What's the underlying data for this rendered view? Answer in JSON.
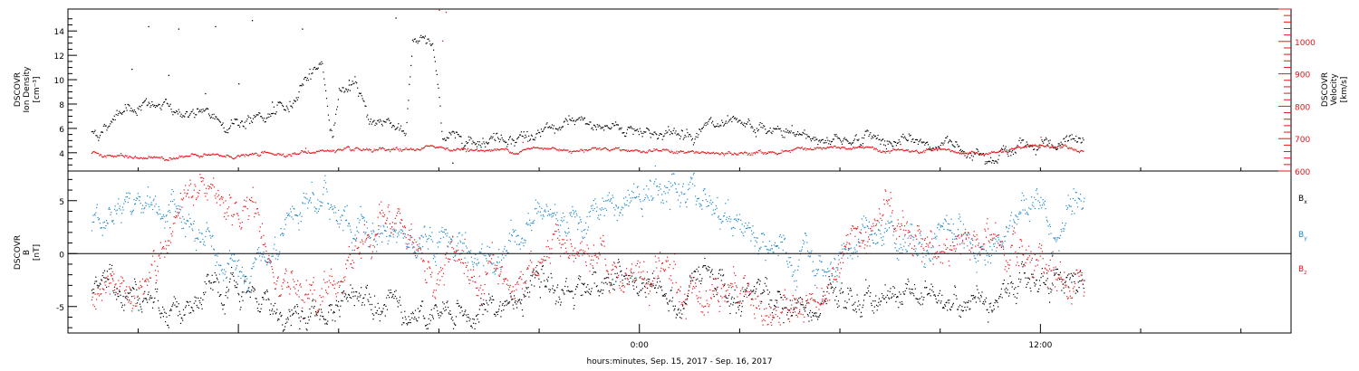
{
  "chart_data": [
    {
      "type": "scatter",
      "title": "",
      "ylabel_left": [
        "DSCOVR",
        "Ion Density",
        "[cm⁻³]"
      ],
      "ylabel_right": [
        "DSCOVR",
        "Velocity",
        "[km/s]"
      ],
      "ylim_left": [
        2.5,
        15.8
      ],
      "ylim_right": [
        600,
        1100
      ],
      "yticks_left": [
        4,
        6,
        8,
        10,
        12,
        14
      ],
      "yticks_right": [
        600,
        700,
        800,
        900,
        1000
      ],
      "grid": false,
      "series": [
        {
          "key": "density",
          "axis": "left",
          "color": "#000000",
          "anchors": [
            [
              -16.4,
              5.7
            ],
            [
              -16,
              6
            ],
            [
              -15.5,
              8
            ],
            [
              -14.5,
              7.8
            ],
            [
              -13.5,
              7.3
            ],
            [
              -12.5,
              6.6
            ],
            [
              -11.5,
              6.7
            ],
            [
              -10.5,
              7.5
            ],
            [
              -10,
              10.5
            ],
            [
              -9.5,
              11.5
            ],
            [
              -9.2,
              5
            ],
            [
              -9,
              9.3
            ],
            [
              -8.5,
              9.2
            ],
            [
              -8,
              6.5
            ],
            [
              -7.5,
              6.7
            ],
            [
              -7,
              6
            ],
            [
              -6.8,
              13
            ],
            [
              -6.2,
              13
            ],
            [
              -5.9,
              5.5
            ],
            [
              -5,
              5.3
            ],
            [
              -4,
              5.5
            ],
            [
              -3,
              5.4
            ],
            [
              -2,
              6.3
            ],
            [
              -1,
              6.2
            ],
            [
              0,
              6
            ],
            [
              1,
              5.5
            ],
            [
              2,
              6.2
            ],
            [
              3,
              5.8
            ],
            [
              4,
              5.7
            ],
            [
              5,
              5.3
            ],
            [
              6,
              5.2
            ],
            [
              7,
              5.3
            ],
            [
              8,
              4.8
            ],
            [
              9,
              4.7
            ],
            [
              10,
              4.4
            ],
            [
              11,
              4.2
            ],
            [
              12,
              5
            ],
            [
              13.3,
              4.7
            ]
          ],
          "scatter": [
            [
              -14.7,
              14.4
            ],
            [
              -13.8,
              14.2
            ],
            [
              -12.7,
              14.4
            ],
            [
              -11.6,
              14.9
            ],
            [
              -10.1,
              14.2
            ],
            [
              -7.3,
              15.1
            ],
            [
              -14.1,
              10.4
            ],
            [
              -12,
              9.7
            ],
            [
              -11,
              8.2
            ],
            [
              -15.2,
              10.9
            ],
            [
              -5.6,
              3.2
            ],
            [
              -8.7,
              10
            ],
            [
              -13,
              8.9
            ]
          ]
        },
        {
          "key": "velocity",
          "axis": "right",
          "color": "#e8141a",
          "anchors": [
            [
              -16.4,
              658
            ],
            [
              -16,
              650
            ],
            [
              -15,
              640
            ],
            [
              -14,
              646
            ],
            [
              -13,
              647
            ],
            [
              -12,
              648
            ],
            [
              -11,
              655
            ],
            [
              -10,
              657
            ],
            [
              -9.5,
              665
            ],
            [
              -9,
              663
            ],
            [
              -8,
              660
            ],
            [
              -7,
              665
            ],
            [
              -6.5,
              672
            ],
            [
              -6,
              675
            ],
            [
              -5,
              666
            ],
            [
              -4,
              665
            ],
            [
              -3,
              670
            ],
            [
              -2,
              668
            ],
            [
              -1,
              674
            ],
            [
              0,
              665
            ],
            [
              1,
              662
            ],
            [
              2,
              655
            ],
            [
              3,
              652
            ],
            [
              4,
              660
            ],
            [
              5,
              674
            ],
            [
              6,
              670
            ],
            [
              7,
              668
            ],
            [
              8,
              662
            ],
            [
              9,
              658
            ],
            [
              10,
              655
            ],
            [
              11,
              660
            ],
            [
              11.5,
              670
            ],
            [
              12,
              682
            ],
            [
              12.5,
              676
            ],
            [
              13,
              668
            ],
            [
              13.3,
              660
            ]
          ],
          "scatter": [
            [
              -6,
              1098
            ],
            [
              -5.8,
              1092
            ],
            [
              -5.9,
              1003
            ],
            [
              -10,
              672
            ],
            [
              -3.5,
              690
            ],
            [
              12,
              706
            ]
          ]
        }
      ]
    },
    {
      "type": "scatter",
      "title": "",
      "ylabel": [
        "DSCOVR",
        "B",
        "[nT]"
      ],
      "ylim": [
        -7.5,
        7.8
      ],
      "yticks": [
        -5,
        0,
        5
      ],
      "hline": 0,
      "grid": false,
      "xlabel": "hours:minutes, Sep. 15, 2017 - Sep. 16, 2017",
      "xticks": [
        {
          "value": 0,
          "label": "0:00"
        },
        {
          "value": 12,
          "label": "12:00"
        }
      ],
      "xlim": [
        -17.1,
        19.5
      ],
      "legend": [
        {
          "label": "B",
          "sub": "x",
          "color": "#000000"
        },
        {
          "label": "B",
          "sub": "y",
          "color": "#1e88c8"
        },
        {
          "label": "B",
          "sub": "z",
          "color": "#e8141a"
        }
      ],
      "series": [
        {
          "key": "bx",
          "color": "#000000",
          "anchors": [
            [
              -16.4,
              -2.5
            ],
            [
              -15.5,
              -3
            ],
            [
              -14.5,
              -4
            ],
            [
              -13.5,
              -5
            ],
            [
              -12.5,
              -4
            ],
            [
              -11.5,
              -4.5
            ],
            [
              -10.5,
              -5.5
            ],
            [
              -9.5,
              -6
            ],
            [
              -8.5,
              -3.5
            ],
            [
              -7.5,
              -3.2
            ],
            [
              -6.5,
              -6
            ],
            [
              -5.5,
              -6
            ],
            [
              -4.5,
              -5.5
            ],
            [
              -3.5,
              -4
            ],
            [
              -2.5,
              -3.5
            ],
            [
              -1.5,
              -2.5
            ],
            [
              -0.5,
              -3
            ],
            [
              0.5,
              -3
            ],
            [
              1.2,
              -6
            ],
            [
              2,
              -1
            ],
            [
              3,
              -3.5
            ],
            [
              4,
              -4.5
            ],
            [
              5,
              -5.5
            ],
            [
              6,
              -5
            ],
            [
              7,
              -4
            ],
            [
              8,
              -3.5
            ],
            [
              9,
              -4
            ],
            [
              10,
              -4.5
            ],
            [
              11,
              -3
            ],
            [
              12,
              -2
            ],
            [
              13.3,
              -2.5
            ]
          ]
        },
        {
          "key": "by",
          "color": "#1e88c8",
          "anchors": [
            [
              -16.4,
              3
            ],
            [
              -15.5,
              4.5
            ],
            [
              -14.5,
              5
            ],
            [
              -13.5,
              2
            ],
            [
              -12.5,
              -1
            ],
            [
              -11.5,
              -3
            ],
            [
              -10.5,
              2
            ],
            [
              -9.5,
              5
            ],
            [
              -8.5,
              3
            ],
            [
              -7.5,
              2
            ],
            [
              -6.5,
              2
            ],
            [
              -5.5,
              1
            ],
            [
              -4.5,
              -0.5
            ],
            [
              -3.5,
              3
            ],
            [
              -2.5,
              4
            ],
            [
              -1.5,
              4
            ],
            [
              -0.5,
              4.5
            ],
            [
              0.5,
              6
            ],
            [
              1.5,
              5.5
            ],
            [
              2.5,
              4
            ],
            [
              3.5,
              2
            ],
            [
              4.5,
              -1
            ],
            [
              5.5,
              -2
            ],
            [
              6.5,
              2
            ],
            [
              7.5,
              2.5
            ],
            [
              8.5,
              1
            ],
            [
              9.5,
              3
            ],
            [
              10.5,
              0
            ],
            [
              11.5,
              5
            ],
            [
              12.5,
              3
            ],
            [
              13.3,
              3.5
            ]
          ]
        },
        {
          "key": "bz",
          "color": "#e8141a",
          "anchors": [
            [
              -16.4,
              -5
            ],
            [
              -15.5,
              -2
            ],
            [
              -14.5,
              -3
            ],
            [
              -13.5,
              5
            ],
            [
              -12.5,
              4
            ],
            [
              -11.5,
              4
            ],
            [
              -10.5,
              -2
            ],
            [
              -9.5,
              -5
            ],
            [
              -8.5,
              0
            ],
            [
              -7.5,
              4
            ],
            [
              -6.5,
              -2
            ],
            [
              -5.5,
              -1
            ],
            [
              -4.5,
              -2
            ],
            [
              -3.5,
              -3
            ],
            [
              -2.5,
              1
            ],
            [
              -1.5,
              -1
            ],
            [
              -0.5,
              -2
            ],
            [
              0.5,
              -3
            ],
            [
              1.5,
              -4
            ],
            [
              2.5,
              -2
            ],
            [
              3.5,
              -5
            ],
            [
              4.5,
              -5.5
            ],
            [
              5.5,
              -3
            ],
            [
              6.5,
              3
            ],
            [
              7.5,
              3
            ],
            [
              8.5,
              2
            ],
            [
              9.5,
              0
            ],
            [
              10.5,
              2
            ],
            [
              11.5,
              -2
            ],
            [
              12.5,
              -3
            ],
            [
              13.3,
              -3.5
            ]
          ]
        }
      ]
    }
  ]
}
